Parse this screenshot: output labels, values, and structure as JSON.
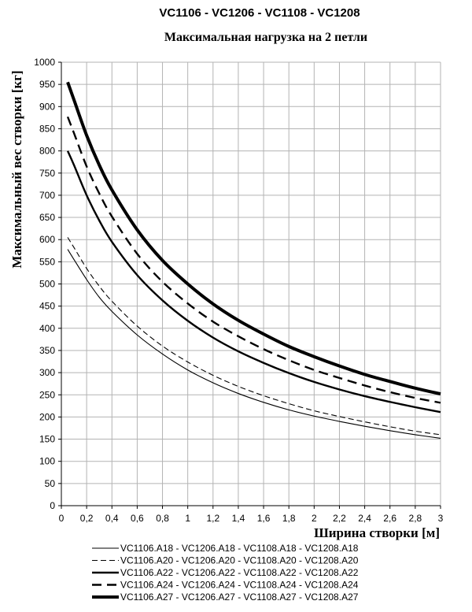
{
  "chart_data": {
    "type": "line",
    "title": "VC1106 - VC1206 - VC1108 - VC1208",
    "subtitle": "Максимальная нагрузка на 2 петли",
    "xlabel": "Ширина створки [м]",
    "ylabel": "Максимальный вес створки [кг]",
    "xlim": [
      0,
      3
    ],
    "ylim": [
      0,
      1000
    ],
    "xticks": [
      "0",
      "0,2",
      "0,4",
      "0,6",
      "0,8",
      "1",
      "1,2",
      "1,4",
      "1,6",
      "1,8",
      "2",
      "2,2",
      "2,4",
      "2,6",
      "2,8",
      "3"
    ],
    "yticks": [
      "0",
      "50",
      "100",
      "150",
      "200",
      "250",
      "300",
      "350",
      "400",
      "450",
      "500",
      "550",
      "600",
      "650",
      "700",
      "750",
      "800",
      "850",
      "900",
      "950",
      "1000"
    ],
    "grid": true,
    "legend_position": "bottom",
    "x": [
      0.05,
      0.1,
      0.2,
      0.3,
      0.4,
      0.6,
      0.8,
      1.0,
      1.2,
      1.4,
      1.6,
      1.8,
      2.0,
      2.2,
      2.4,
      2.6,
      2.8,
      3.0
    ],
    "series": [
      {
        "name": "VC1106.A18 - VC1206.A18 - VC1108.A18 - VC1208.A18",
        "style": "thin-solid",
        "values": [
          578,
          555,
          510,
          470,
          438,
          385,
          342,
          306,
          277,
          253,
          233,
          216,
          202,
          190,
          179,
          169,
          160,
          152
        ]
      },
      {
        "name": "VC1106.A20 - VC1206.A20 - VC1108.A20 - VC1208.A20",
        "style": "thin-dashed",
        "values": [
          605,
          582,
          535,
          495,
          461,
          405,
          360,
          324,
          294,
          269,
          248,
          230,
          214,
          201,
          189,
          178,
          168,
          160
        ]
      },
      {
        "name": "VC1106.A22 - VC1206.A22 - VC1108.A22 - VC1208.A22",
        "style": "medium-solid",
        "values": [
          800,
          768,
          700,
          643,
          595,
          520,
          463,
          417,
          379,
          348,
          322,
          299,
          279,
          262,
          247,
          234,
          222,
          211
        ]
      },
      {
        "name": "VC1106.A24 - VC1206.A24 - VC1108.A24 - VC1208.A24",
        "style": "medium-dashed",
        "values": [
          877,
          840,
          765,
          704,
          652,
          568,
          505,
          456,
          415,
          382,
          353,
          328,
          306,
          288,
          271,
          256,
          243,
          232
        ]
      },
      {
        "name": "VC1106.A27 - VC1206.A27 - VC1108.A27 - VC1208.A27",
        "style": "thick-solid",
        "values": [
          955,
          915,
          835,
          768,
          712,
          622,
          553,
          500,
          455,
          418,
          387,
          359,
          336,
          315,
          296,
          280,
          265,
          252
        ]
      }
    ]
  }
}
